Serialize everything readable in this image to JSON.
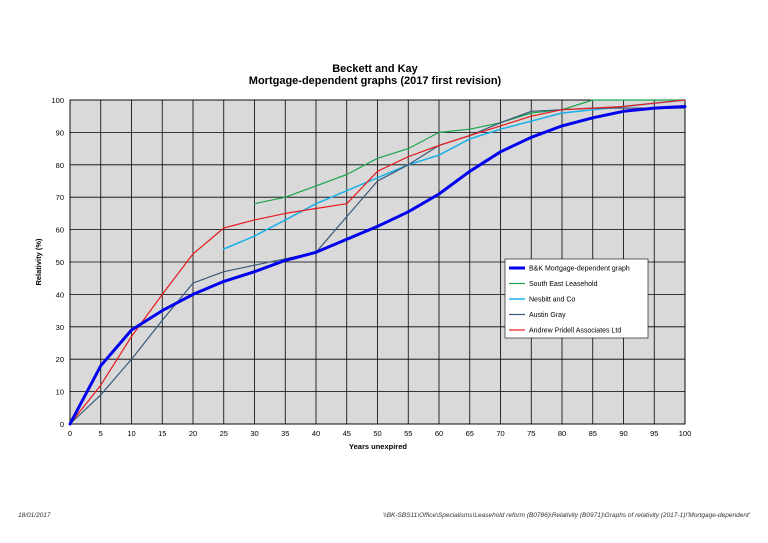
{
  "chart_data": {
    "type": "line",
    "title": "Beckett and Kay",
    "subtitle": "Mortgage-dependent graphs (2017 first revision)",
    "xlabel": "Years unexpired",
    "ylabel": "Relativity (%)",
    "xlim": [
      0,
      100
    ],
    "ylim": [
      0,
      100
    ],
    "x_ticks": [
      "0",
      "5",
      "10",
      "15",
      "20",
      "25",
      "30",
      "35",
      "40",
      "45",
      "50",
      "55",
      "60",
      "65",
      "70",
      "75",
      "80",
      "85",
      "90",
      "95",
      "100"
    ],
    "y_ticks": [
      "0",
      "10",
      "20",
      "30",
      "40",
      "50",
      "60",
      "70",
      "80",
      "90",
      "100"
    ],
    "grid": true,
    "legend_position": "right",
    "series": [
      {
        "name": "B&K Mortgage-dependent graph",
        "color": "#0000ee",
        "width": 3,
        "points": [
          [
            0,
            0
          ],
          [
            5,
            18
          ],
          [
            10,
            29
          ],
          [
            15,
            35
          ],
          [
            20,
            40
          ],
          [
            25,
            44
          ],
          [
            30,
            47
          ],
          [
            35,
            50.5
          ],
          [
            40,
            53
          ],
          [
            45,
            57
          ],
          [
            50,
            61
          ],
          [
            55,
            65.5
          ],
          [
            60,
            71
          ],
          [
            65,
            78
          ],
          [
            70,
            84
          ],
          [
            75,
            88.5
          ],
          [
            80,
            92
          ],
          [
            85,
            94.5
          ],
          [
            90,
            96.5
          ],
          [
            95,
            97.5
          ],
          [
            100,
            98
          ]
        ]
      },
      {
        "name": "South East Leasehold",
        "color": "#1aa64b",
        "width": 1.2,
        "points": [
          [
            30,
            68
          ],
          [
            35,
            70
          ],
          [
            40,
            73.5
          ],
          [
            45,
            77
          ],
          [
            50,
            82
          ],
          [
            55,
            85
          ],
          [
            60,
            90
          ],
          [
            65,
            91
          ],
          [
            70,
            93
          ],
          [
            75,
            96
          ],
          [
            80,
            97
          ],
          [
            85,
            100
          ],
          [
            90,
            100
          ],
          [
            95,
            100
          ],
          [
            100,
            100
          ]
        ]
      },
      {
        "name": "Nesbitt and Co",
        "color": "#1ab0e8",
        "width": 1.5,
        "points": [
          [
            25,
            54
          ],
          [
            30,
            58
          ],
          [
            35,
            63
          ],
          [
            40,
            68
          ],
          [
            45,
            72
          ],
          [
            50,
            76
          ],
          [
            55,
            80
          ],
          [
            60,
            83
          ],
          [
            65,
            88
          ],
          [
            70,
            91
          ],
          [
            75,
            93.5
          ],
          [
            80,
            96
          ],
          [
            85,
            97
          ],
          [
            90,
            98
          ],
          [
            95,
            99
          ],
          [
            100,
            100
          ]
        ]
      },
      {
        "name": "Austin Gray",
        "color": "#3a5a7a",
        "width": 1.2,
        "points": [
          [
            0,
            0
          ],
          [
            5,
            9
          ],
          [
            10,
            20
          ],
          [
            15,
            32
          ],
          [
            20,
            43.5
          ],
          [
            25,
            47
          ],
          [
            30,
            49
          ],
          [
            35,
            51
          ],
          [
            40,
            53
          ],
          [
            45,
            64
          ],
          [
            50,
            75
          ],
          [
            55,
            80
          ],
          [
            60,
            86
          ],
          [
            65,
            89
          ],
          [
            70,
            93
          ],
          [
            75,
            96.5
          ],
          [
            80,
            97
          ],
          [
            85,
            97.5
          ],
          [
            90,
            97.5
          ],
          [
            95,
            97.5
          ],
          [
            100,
            97.5
          ]
        ]
      },
      {
        "name": "Andrew Pridell Associates Ltd",
        "color": "#e8191e",
        "width": 1.2,
        "points": [
          [
            0,
            0
          ],
          [
            5,
            12
          ],
          [
            10,
            27
          ],
          [
            15,
            40
          ],
          [
            20,
            52.5
          ],
          [
            25,
            60.5
          ],
          [
            30,
            63
          ],
          [
            35,
            65
          ],
          [
            40,
            66.5
          ],
          [
            45,
            68
          ],
          [
            50,
            78
          ],
          [
            55,
            82.5
          ],
          [
            60,
            86
          ],
          [
            65,
            89
          ],
          [
            70,
            92
          ],
          [
            75,
            95
          ],
          [
            80,
            97
          ],
          [
            85,
            97.5
          ],
          [
            90,
            98
          ],
          [
            95,
            99
          ],
          [
            100,
            100
          ]
        ]
      }
    ]
  },
  "footer": {
    "date": "18/01/2017",
    "path": "\\\\BK-SBS11\\Office\\Specialisms\\Leasehold reform (B0786)\\Relativity (B0971)\\Graphs of relativity (2017-1)!'Mortgage-dependent'"
  }
}
